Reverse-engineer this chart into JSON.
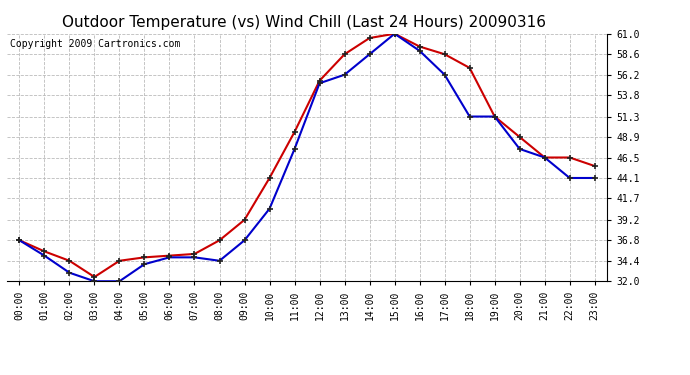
{
  "title": "Outdoor Temperature (vs) Wind Chill (Last 24 Hours) 20090316",
  "copyright": "Copyright 2009 Cartronics.com",
  "hours": [
    "00:00",
    "01:00",
    "02:00",
    "03:00",
    "04:00",
    "05:00",
    "06:00",
    "07:00",
    "08:00",
    "09:00",
    "10:00",
    "11:00",
    "12:00",
    "13:00",
    "14:00",
    "15:00",
    "16:00",
    "17:00",
    "18:00",
    "19:00",
    "20:00",
    "21:00",
    "22:00",
    "23:00"
  ],
  "temp": [
    36.8,
    35.5,
    34.4,
    32.5,
    34.4,
    34.8,
    35.0,
    35.2,
    36.8,
    39.2,
    44.1,
    49.5,
    55.5,
    58.6,
    60.5,
    61.0,
    59.5,
    58.6,
    57.0,
    51.3,
    48.9,
    46.5,
    46.5,
    45.5
  ],
  "wind_chill": [
    36.8,
    35.0,
    33.0,
    32.0,
    32.0,
    34.0,
    34.8,
    34.8,
    34.4,
    36.8,
    40.5,
    47.5,
    55.2,
    56.2,
    58.6,
    61.0,
    59.0,
    56.2,
    51.3,
    51.3,
    47.5,
    46.5,
    44.1,
    44.1
  ],
  "temp_color": "#cc0000",
  "wind_chill_color": "#0000cc",
  "ylim": [
    32.0,
    61.0
  ],
  "yticks": [
    32.0,
    34.4,
    36.8,
    39.2,
    41.7,
    44.1,
    46.5,
    48.9,
    51.3,
    53.8,
    56.2,
    58.6,
    61.0
  ],
  "bg_color": "#ffffff",
  "plot_bg_color": "#ffffff",
  "grid_color": "#bbbbbb",
  "title_fontsize": 11,
  "copyright_fontsize": 7,
  "tick_fontsize": 7,
  "marker_color": "#222222",
  "line_width": 1.5,
  "marker_size": 5
}
